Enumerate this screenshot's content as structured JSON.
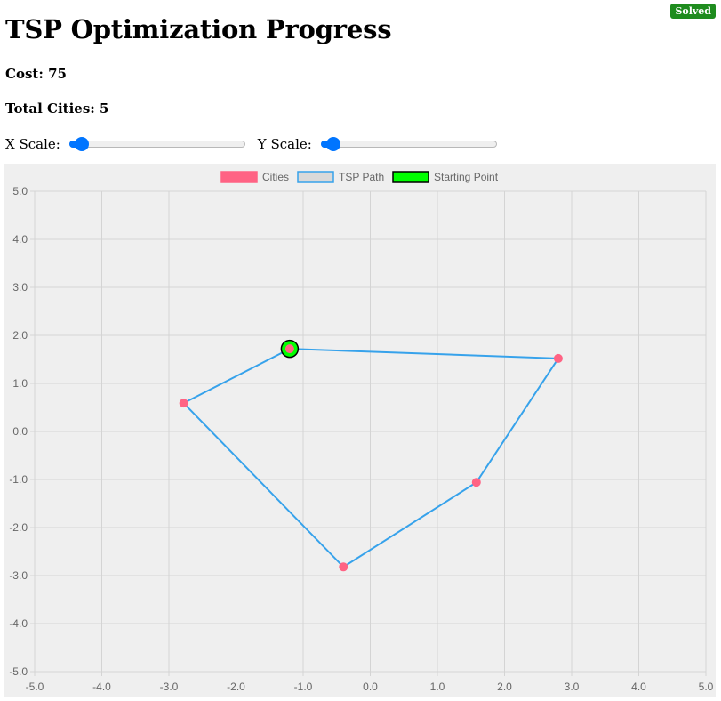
{
  "status": {
    "badge": "Solved",
    "badge_color": "#1e8c1e"
  },
  "header": {
    "title": "TSP Optimization Progress",
    "cost_text": "Cost: 75",
    "cities_text": "Total Cities: 5"
  },
  "controls": {
    "x_scale_label": "X Scale:",
    "x_scale_value": 0.07,
    "y_scale_label": "Y Scale:",
    "y_scale_value": 0.07
  },
  "colors": {
    "accent": "#0075ff",
    "city": "#ff6384",
    "path": "#36a2eb",
    "start": "#00ff00"
  },
  "chart_data": {
    "type": "scatter",
    "xlim": [
      -5.0,
      5.0
    ],
    "ylim": [
      -5.0,
      5.0
    ],
    "x_ticks": [
      "-5.0",
      "-4.0",
      "-3.0",
      "-2.0",
      "-1.0",
      "0.0",
      "1.0",
      "2.0",
      "3.0",
      "4.0",
      "5.0"
    ],
    "y_ticks": [
      "5.0",
      "4.0",
      "3.0",
      "2.0",
      "1.0",
      "0.0",
      "-1.0",
      "-2.0",
      "-3.0",
      "-4.0",
      "-5.0"
    ],
    "grid": true,
    "legend_position": "top",
    "legend": [
      {
        "label": "Cities"
      },
      {
        "label": "TSP Path"
      },
      {
        "label": "Starting Point"
      }
    ],
    "series": [
      {
        "name": "Cities",
        "points": [
          {
            "x": -1.2,
            "y": 1.72
          },
          {
            "x": 2.8,
            "y": 1.52
          },
          {
            "x": 1.58,
            "y": -1.06
          },
          {
            "x": -0.4,
            "y": -2.82
          },
          {
            "x": -2.78,
            "y": 0.59
          }
        ]
      },
      {
        "name": "TSP Path",
        "points": [
          {
            "x": -1.2,
            "y": 1.72
          },
          {
            "x": 2.8,
            "y": 1.52
          },
          {
            "x": 1.58,
            "y": -1.06
          },
          {
            "x": -0.4,
            "y": -2.82
          },
          {
            "x": -2.78,
            "y": 0.59
          },
          {
            "x": -1.2,
            "y": 1.72
          }
        ]
      },
      {
        "name": "Starting Point",
        "points": [
          {
            "x": -1.2,
            "y": 1.72
          }
        ]
      }
    ]
  }
}
